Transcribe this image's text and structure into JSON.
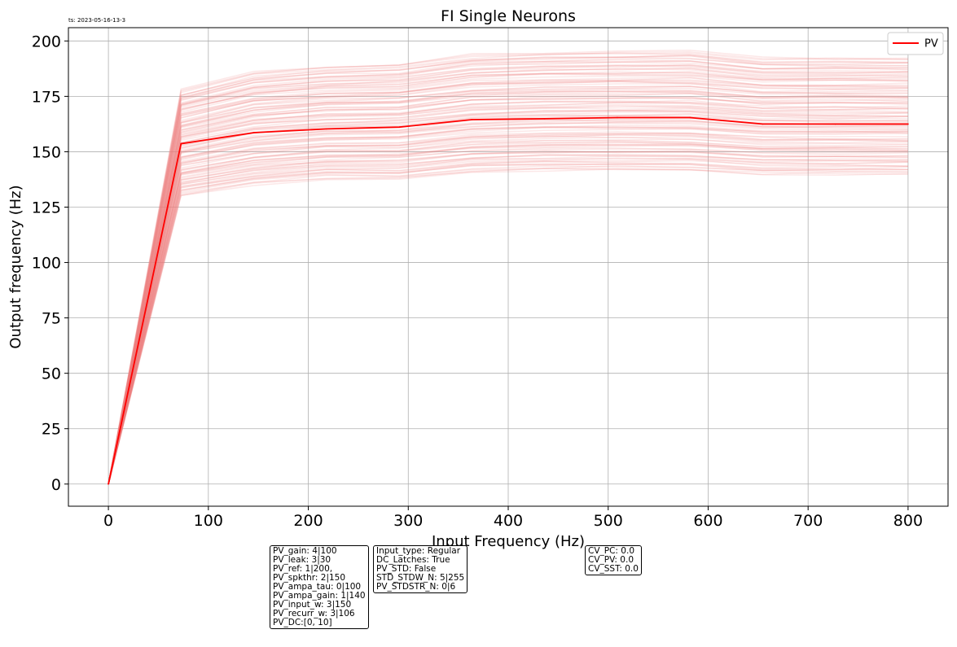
{
  "timestamp": "ts: 2023-05-16-13-3",
  "chart_data": {
    "type": "line",
    "title": "FI Single Neurons",
    "xlabel": "Input Frequency (Hz)",
    "ylabel": "Output frequency (Hz)",
    "xlim": [
      -40,
      840
    ],
    "ylim": [
      -10,
      206
    ],
    "xticks": [
      0,
      100,
      200,
      300,
      400,
      500,
      600,
      700,
      800
    ],
    "yticks": [
      0,
      25,
      50,
      75,
      100,
      125,
      150,
      175,
      200
    ],
    "grid": true,
    "legend": {
      "placement": "top-right",
      "entries": [
        "PV"
      ]
    },
    "x": [
      0,
      72.7,
      145.5,
      218.2,
      290.9,
      363.6,
      436.4,
      509.1,
      581.8,
      654.5,
      727.3,
      800
    ],
    "series": [
      {
        "name": "PV",
        "color": "#ff0000",
        "values": [
          0,
          153.6,
          158.6,
          160.3,
          161.1,
          164.5,
          164.9,
          165.4,
          165.4,
          162.5,
          162.5,
          162.5
        ]
      }
    ],
    "individual_neurons": {
      "color": "#f08080",
      "count": 120,
      "lower_envelope": [
        0,
        130,
        135,
        137.5,
        137.5,
        140.5,
        141.5,
        141.5,
        141.5,
        139.5,
        139.5,
        139.5
      ],
      "upper_envelope": [
        0,
        178,
        186,
        188.5,
        189.5,
        194,
        195,
        195.5,
        195.5,
        192.5,
        192.5,
        192.5
      ]
    }
  },
  "info_boxes": [
    [
      "PV_gain: 4|100",
      "PV_leak: 3|30",
      "PV_ref: 1|200,",
      "PV_spkthr: 2|150",
      "PV_ampa_tau: 0|100",
      "PV_ampa_gain: 1|140",
      "PV_input_w: 3|150",
      "PV_recurr_w: 3|106",
      "PV_DC:[0, 10]"
    ],
    [
      "Input_type: Regular",
      "DC_Latches: True",
      "PV_STD: False",
      "STD_STDW_N: 5|255",
      "PV_STDSTR_N: 0|6"
    ],
    [
      "CV_PC: 0.0",
      "CV_PV: 0.0",
      "CV_SST: 0.0"
    ]
  ]
}
